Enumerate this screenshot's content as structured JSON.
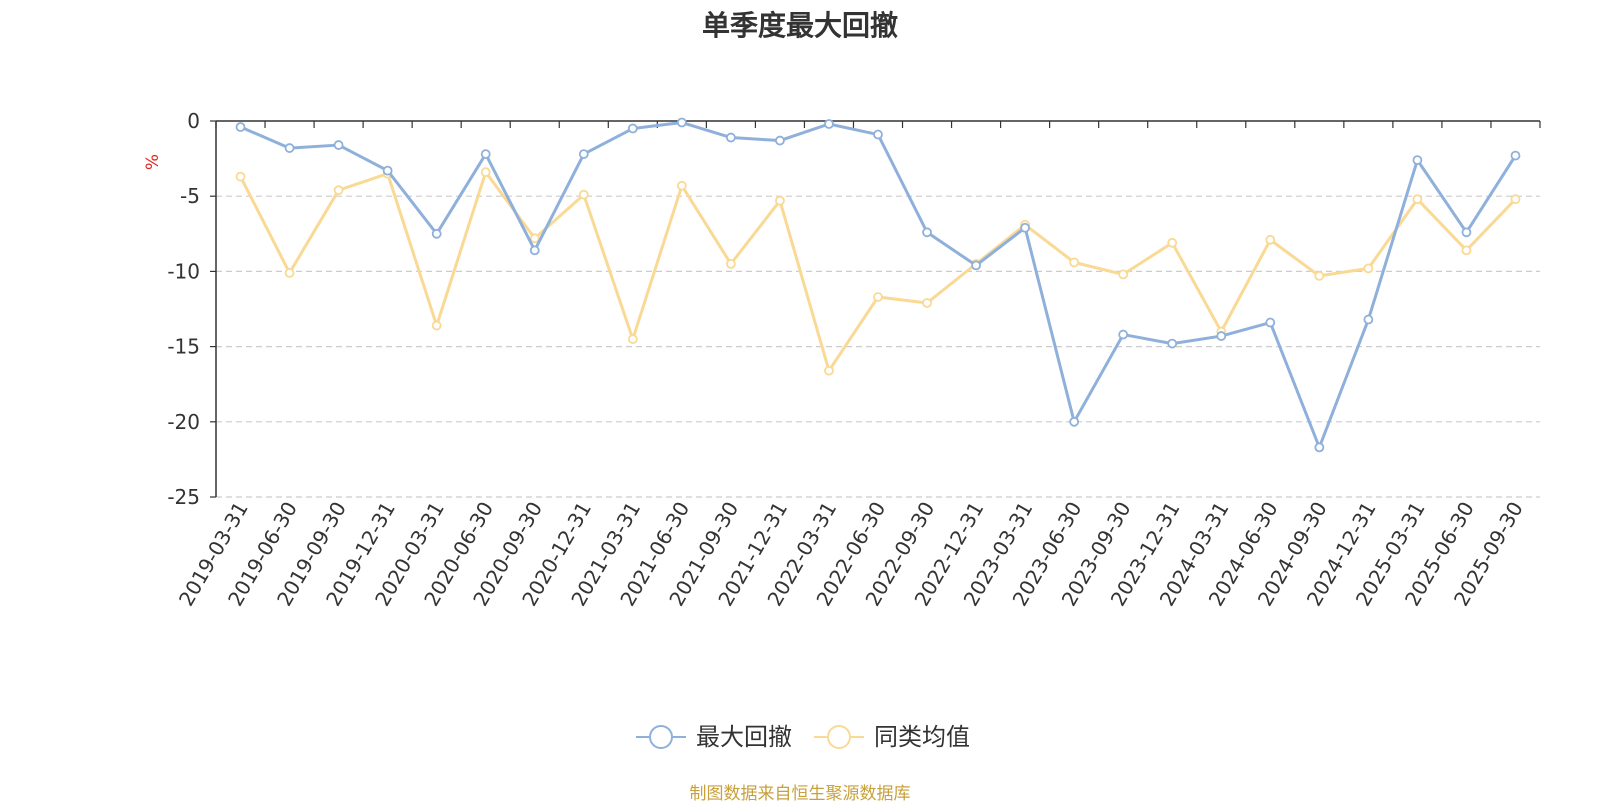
{
  "chart_data": {
    "type": "line",
    "title": "单季度最大回撤",
    "ylabel": "%",
    "xlabel": "",
    "ylim": [
      -25,
      0
    ],
    "yticks": [
      0,
      -5,
      -10,
      -15,
      -20,
      -25
    ],
    "grid": true,
    "legend_position": "bottom-center",
    "categories": [
      "2019-03-31",
      "2019-06-30",
      "2019-09-30",
      "2019-12-31",
      "2020-03-31",
      "2020-06-30",
      "2020-09-30",
      "2020-12-31",
      "2021-03-31",
      "2021-06-30",
      "2021-09-30",
      "2021-12-31",
      "2022-03-31",
      "2022-06-30",
      "2022-09-30",
      "2022-12-31",
      "2023-03-31",
      "2023-06-30",
      "2023-09-30",
      "2023-12-31",
      "2024-03-31",
      "2024-06-30",
      "2024-09-30",
      "2024-12-31",
      "2025-03-31",
      "2025-06-30",
      "2025-09-30"
    ],
    "series": [
      {
        "name": "最大回撤",
        "color": "#8eb0db",
        "values": [
          -0.4,
          -1.8,
          -1.6,
          -3.3,
          -7.5,
          -2.2,
          -8.6,
          -2.2,
          -0.5,
          -0.1,
          -1.1,
          -1.3,
          -0.2,
          -0.9,
          -7.4,
          -9.6,
          -7.1,
          -20.0,
          -14.2,
          -14.8,
          -14.3,
          -13.4,
          -21.7,
          -13.2,
          -2.6,
          -7.4,
          -2.3
        ]
      },
      {
        "name": "同类均值",
        "color": "#f9d994",
        "values": [
          -3.7,
          -10.1,
          -4.6,
          -3.5,
          -13.6,
          -3.4,
          -7.8,
          -4.9,
          -14.5,
          -4.3,
          -9.5,
          -5.3,
          -16.6,
          -11.7,
          -12.1,
          -9.5,
          -6.9,
          -9.4,
          -10.2,
          -8.1,
          -14.0,
          -7.9,
          -10.3,
          -9.8,
          -5.2,
          -8.6,
          -5.2
        ]
      }
    ]
  },
  "footer": {
    "source": "制图数据来自恒生聚源数据库"
  }
}
